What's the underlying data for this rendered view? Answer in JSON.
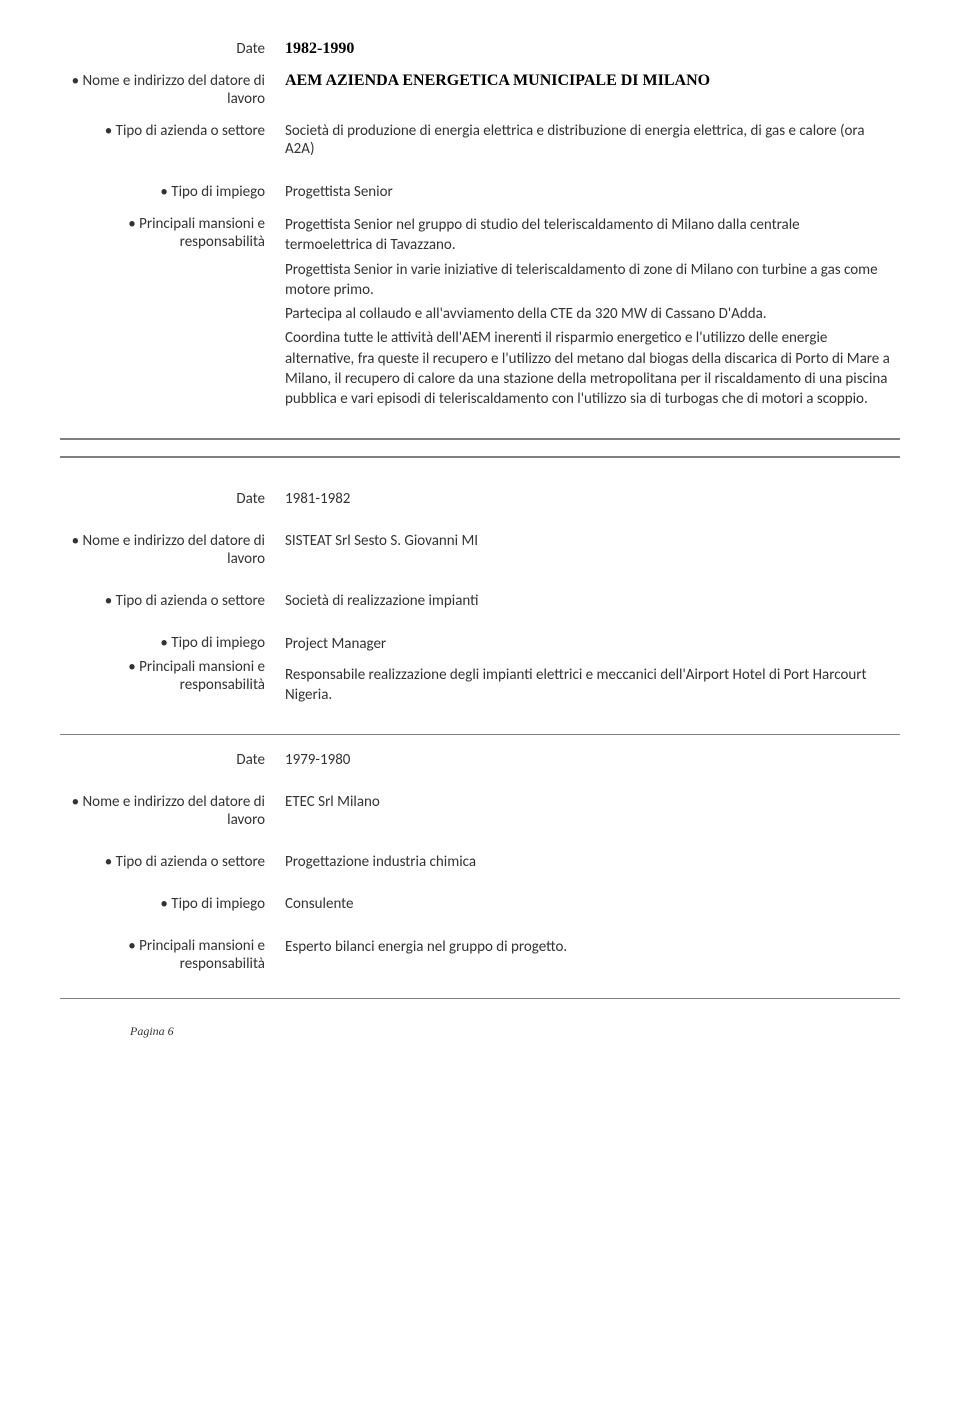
{
  "colors": {
    "text": "#333333",
    "heading": "#000000",
    "rule": "#808080",
    "background": "#ffffff"
  },
  "fonts": {
    "body": "Calibri",
    "serif": "Georgia",
    "body_size_pt": 11,
    "serif_heading_size_pt": 12
  },
  "labels": {
    "date": "Date",
    "employer": "• Nome e indirizzo del datore di lavoro",
    "sector": "• Tipo di azienda o settore",
    "role": "• Tipo di impiego",
    "duties": "• Principali mansioni e responsabilità"
  },
  "entries": [
    {
      "dates": "1982-1990",
      "dates_style": "serif-bold",
      "employer": "AEM AZIENDA ENERGETICA MUNICIPALE DI MILANO",
      "employer_style": "serif-bold",
      "sector": "Società di produzione di energia elettrica e  distribuzione di energia elettrica, di gas e calore (ora A2A)",
      "role": "Progettista Senior",
      "duties": [
        "Progettista Senior nel gruppo di studio del teleriscaldamento di Milano dalla centrale termoelettrica di Tavazzano.",
        "Progettista Senior in varie iniziative di teleriscaldamento di zone di Milano con turbine a gas come motore primo.",
        "Partecipa al collaudo e all'avviamento della CTE da 320 MW di Cassano D'Adda.",
        "Coordina tutte le attività dell'AEM inerenti il risparmio energetico e l'utilizzo delle energie alternative, fra queste il recupero e l'utilizzo del metano dal biogas della discarica di Porto di Mare a Milano, il recupero di calore da una stazione della metropolitana per il riscaldamento di una piscina pubblica e vari episodi di teleriscaldamento con l'utilizzo sia di turbogas che di motori a scoppio."
      ],
      "rule_after": "double"
    },
    {
      "dates": "1981-1982",
      "dates_style": "regular",
      "employer": "SISTEAT Srl   Sesto S. Giovanni MI",
      "employer_style": "regular",
      "sector": "Società di realizzazione impianti",
      "role": "Project Manager",
      "duties": [
        "Responsabile realizzazione degli impianti elettrici e meccanici dell'Airport Hotel di Port Harcourt  Nigeria."
      ],
      "rule_after": "single"
    },
    {
      "dates": "1979-1980",
      "dates_style": "regular",
      "employer": "ETEC Srl Milano",
      "employer_style": "regular",
      "sector": "Progettazione industria chimica",
      "role": "Consulente",
      "duties": [
        "Esperto bilanci energia nel gruppo di progetto."
      ],
      "rule_after": "single"
    }
  ],
  "footer": "Pagina 6"
}
